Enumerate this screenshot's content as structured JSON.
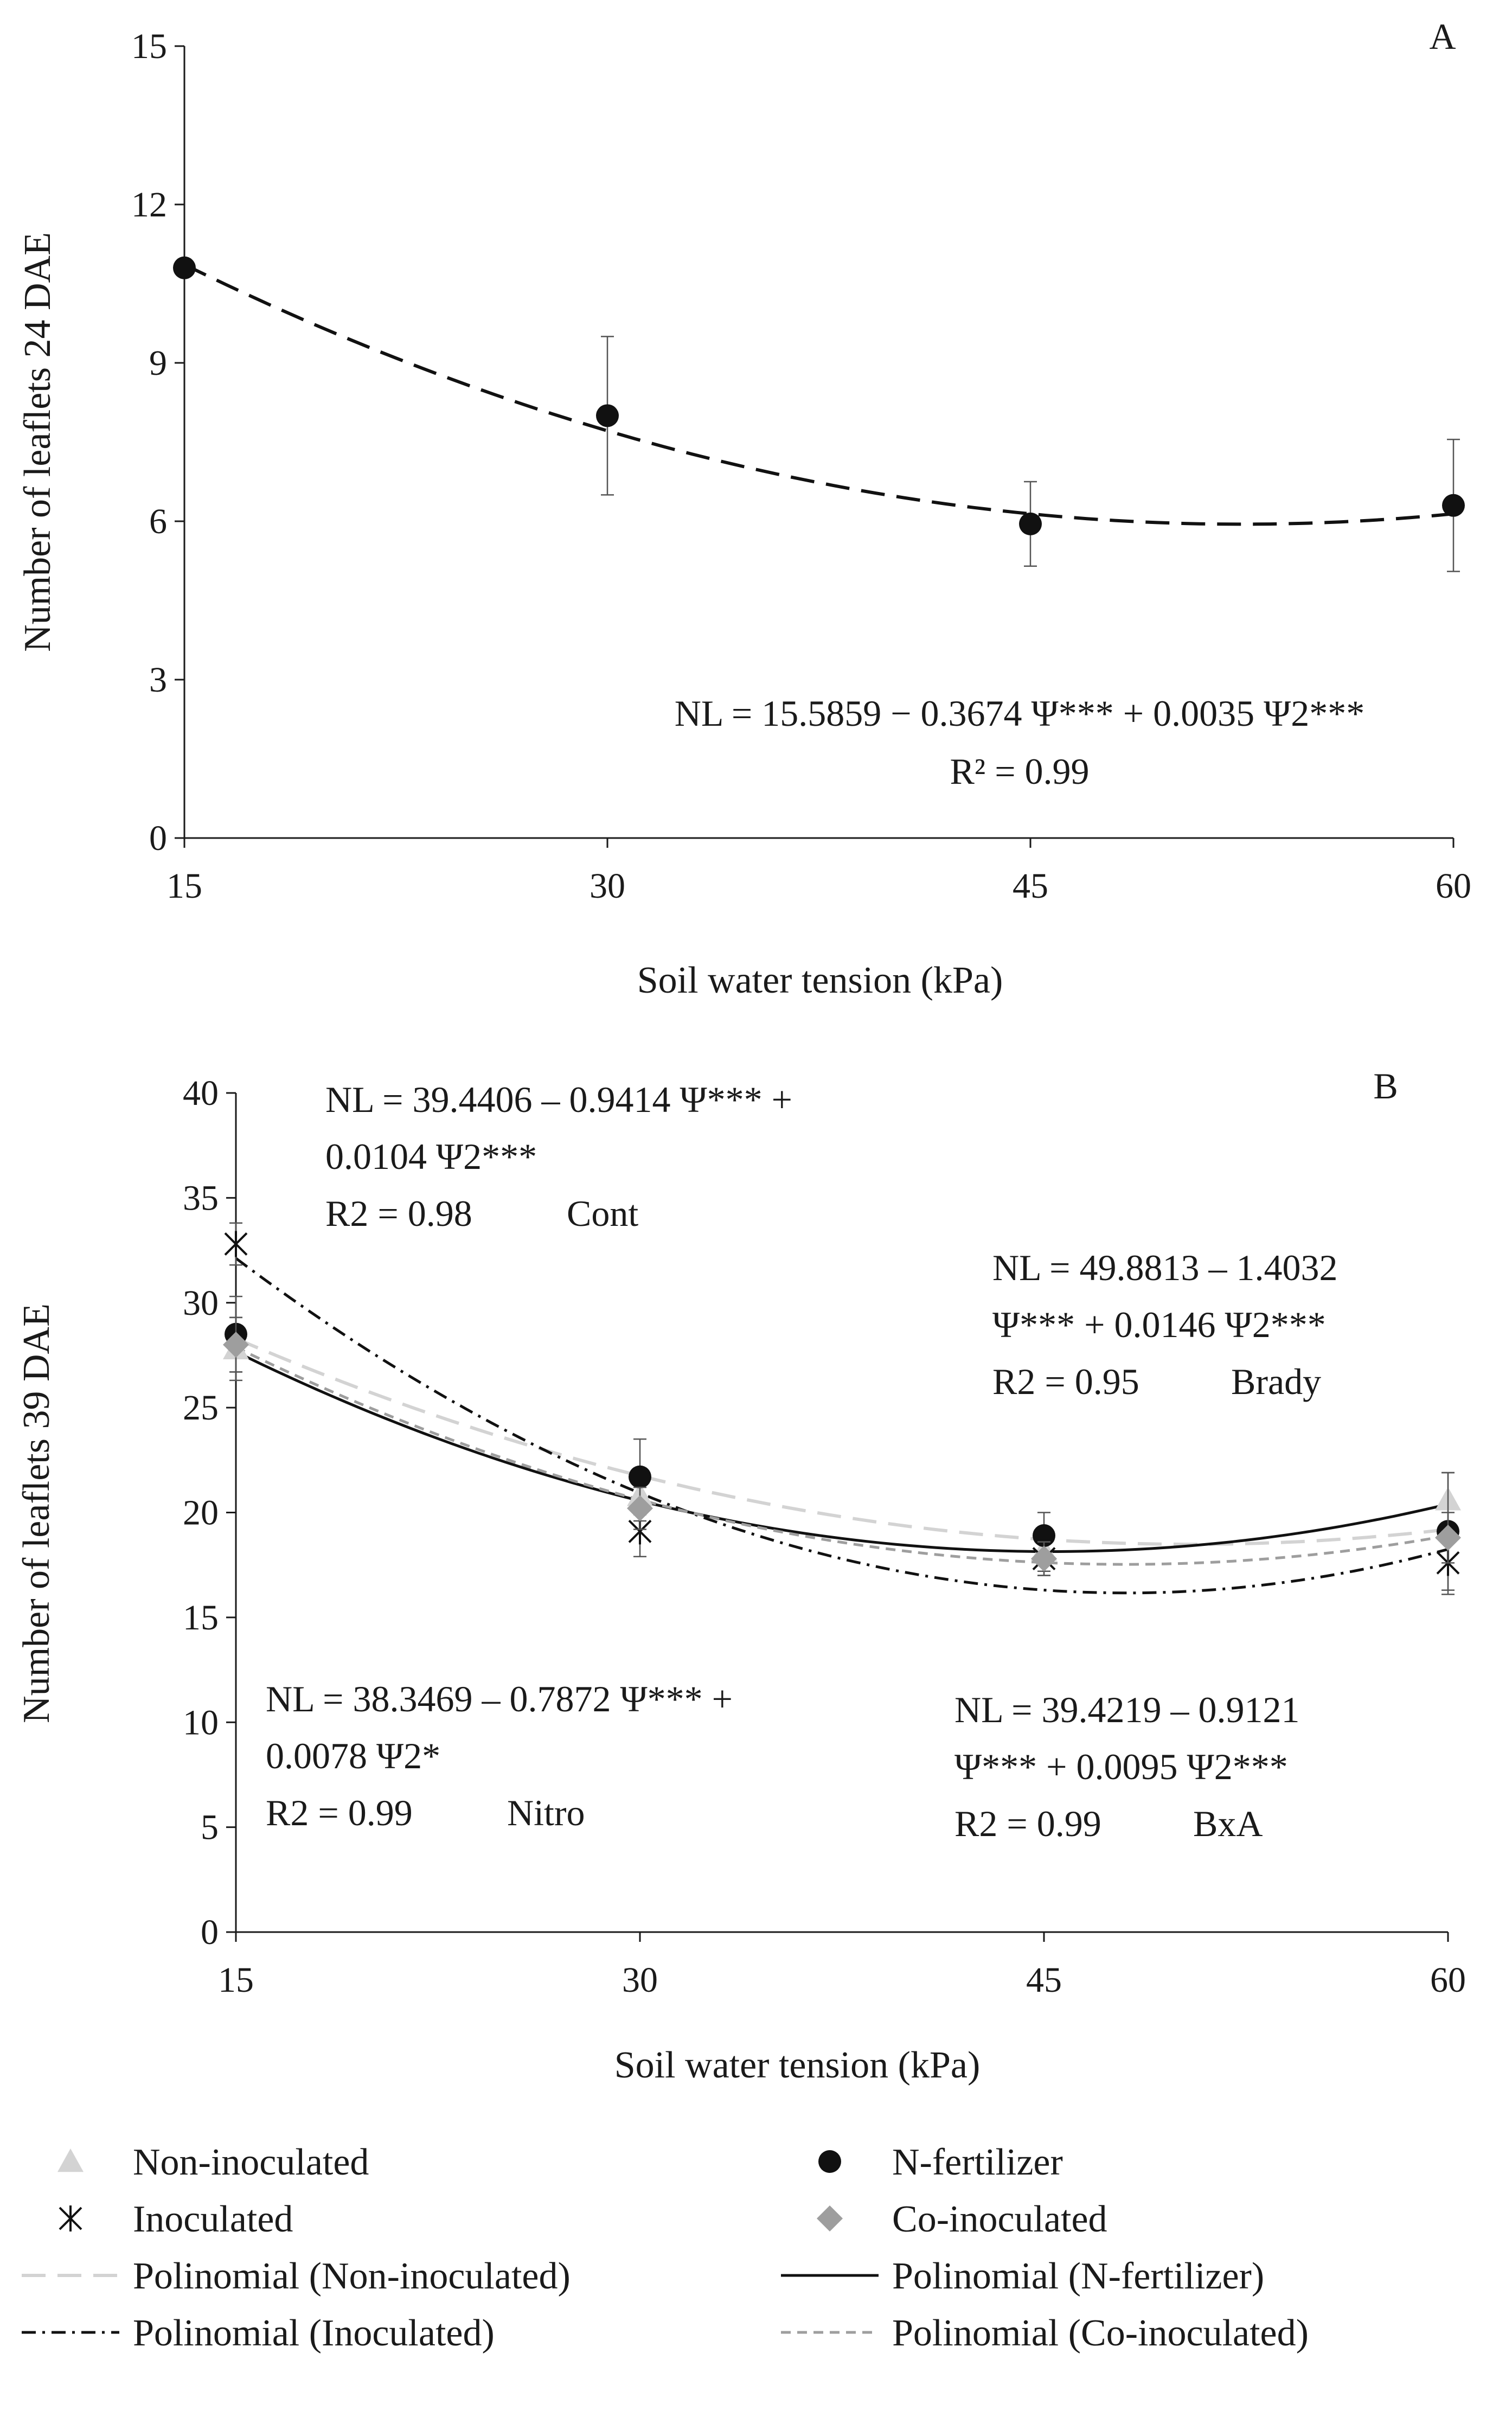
{
  "colors": {
    "axis": "#1a1a1a",
    "n_fertilizer": "#111111",
    "non_inoculated": "#d3d3d3",
    "inoculated": "#111111",
    "co_inoculated": "#9e9e9e",
    "fit_a": "#111111"
  },
  "chart_data": [
    {
      "id": "A",
      "type": "scatter",
      "panel_label": "A",
      "xlabel": "Soil water tension (kPa)",
      "ylabel": "Number of leaflets 24 DAE",
      "xlim": [
        15,
        60
      ],
      "ylim": [
        0,
        15
      ],
      "xticks": [
        15,
        30,
        45,
        60
      ],
      "yticks": [
        0,
        3,
        6,
        9,
        12,
        15
      ],
      "series": [
        {
          "name": "Mean",
          "marker": "circle",
          "x": [
            15,
            30,
            45,
            60
          ],
          "values": [
            10.8,
            8.0,
            5.95,
            6.3
          ],
          "err": [
            0.0,
            1.5,
            0.8,
            1.25
          ]
        }
      ],
      "fit": {
        "label": "Fit",
        "coef": [
          15.5859,
          -0.3674,
          0.0035
        ],
        "style": "long-dash"
      },
      "annotations": [
        {
          "id": "eq",
          "lines": [
            "NL = 15.5859 − 0.3674 Ψ*** + 0.0035 Ψ2***",
            "R² = 0.99"
          ]
        }
      ]
    },
    {
      "id": "B",
      "type": "scatter",
      "panel_label": "B",
      "xlabel": "Soil water tension (kPa)",
      "ylabel": "Number of leaflets 39 DAE",
      "xlim": [
        15,
        60
      ],
      "ylim": [
        0,
        40
      ],
      "xticks": [
        15,
        30,
        45,
        60
      ],
      "yticks": [
        0,
        5,
        10,
        15,
        20,
        25,
        30,
        35,
        40
      ],
      "series": [
        {
          "name": "Non-inoculated",
          "marker": "triangle",
          "x": [
            15,
            30,
            45,
            60
          ],
          "values": [
            27.8,
            20.8,
            18.2,
            20.6
          ],
          "err": [
            1.5,
            1.2,
            1.0,
            1.3
          ]
        },
        {
          "name": "N-fertilizer",
          "marker": "circle",
          "x": [
            15,
            30,
            45,
            60
          ],
          "values": [
            28.5,
            21.7,
            18.9,
            19.1
          ],
          "err": [
            1.8,
            1.8,
            1.1,
            2.8
          ]
        },
        {
          "name": "Inoculated",
          "marker": "asterisk",
          "x": [
            15,
            30,
            45,
            60
          ],
          "values": [
            32.8,
            19.1,
            17.8,
            17.6
          ],
          "err": [
            1.0,
            1.2,
            0.8,
            1.5
          ]
        },
        {
          "name": "Co-inoculated",
          "marker": "diamond",
          "x": [
            15,
            30,
            45,
            60
          ],
          "values": [
            28.0,
            20.2,
            17.8,
            18.8
          ],
          "err": [
            1.3,
            1.0,
            0.8,
            1.2
          ]
        }
      ],
      "fits": [
        {
          "series": "Non-inoculated",
          "label": "Polinomial (Non-inoculated)",
          "coef": [
            38.3469,
            -0.7872,
            0.0078
          ],
          "style": "long-dash"
        },
        {
          "series": "N-fertilizer",
          "label": "Polinomial (N-fertilizer)",
          "coef": [
            39.4406,
            -0.9414,
            0.0104
          ],
          "style": "solid"
        },
        {
          "series": "Inoculated",
          "label": "Polinomial (Inoculated)",
          "coef": [
            49.8813,
            -1.4032,
            0.0146
          ],
          "style": "dash-dot"
        },
        {
          "series": "Co-inoculated",
          "label": "Polinomial (Co-inoculated)",
          "coef": [
            39.4219,
            -0.9121,
            0.0095
          ],
          "style": "short-dash"
        }
      ],
      "annotations": [
        {
          "id": "cont",
          "lines": [
            "NL = 39.4406 – 0.9414 Ψ*** +",
            "0.0104 Ψ2***",
            "R2 = 0.98",
            "Cont"
          ]
        },
        {
          "id": "brady",
          "lines": [
            "NL = 49.8813 – 1.4032",
            "Ψ*** + 0.0146 Ψ2***",
            "R2 = 0.95",
            "Brady"
          ]
        },
        {
          "id": "nitro",
          "lines": [
            "NL = 38.3469 – 0.7872 Ψ*** +",
            "0.0078 Ψ2*",
            "R2 = 0.99",
            "Nitro"
          ]
        },
        {
          "id": "bxa",
          "lines": [
            "NL = 39.4219 – 0.9121",
            "Ψ*** + 0.0095 Ψ2***",
            "R2 = 0.99",
            "BxA"
          ]
        }
      ]
    }
  ],
  "legend": {
    "items": [
      {
        "label": "Non-inoculated",
        "symbol": "triangle"
      },
      {
        "label": "N-fertilizer",
        "symbol": "circle"
      },
      {
        "label": "Inoculated",
        "symbol": "asterisk"
      },
      {
        "label": "Co-inoculated",
        "symbol": "diamond"
      },
      {
        "label": "Polinomial (Non-inoculated)",
        "symbol": "long-dash-line"
      },
      {
        "label": "Polinomial (N-fertilizer)",
        "symbol": "solid-line"
      },
      {
        "label": "Polinomial (Inoculated)",
        "symbol": "dash-dot-line"
      },
      {
        "label": "Polinomial (Co-inoculated)",
        "symbol": "short-dash-line"
      }
    ]
  }
}
